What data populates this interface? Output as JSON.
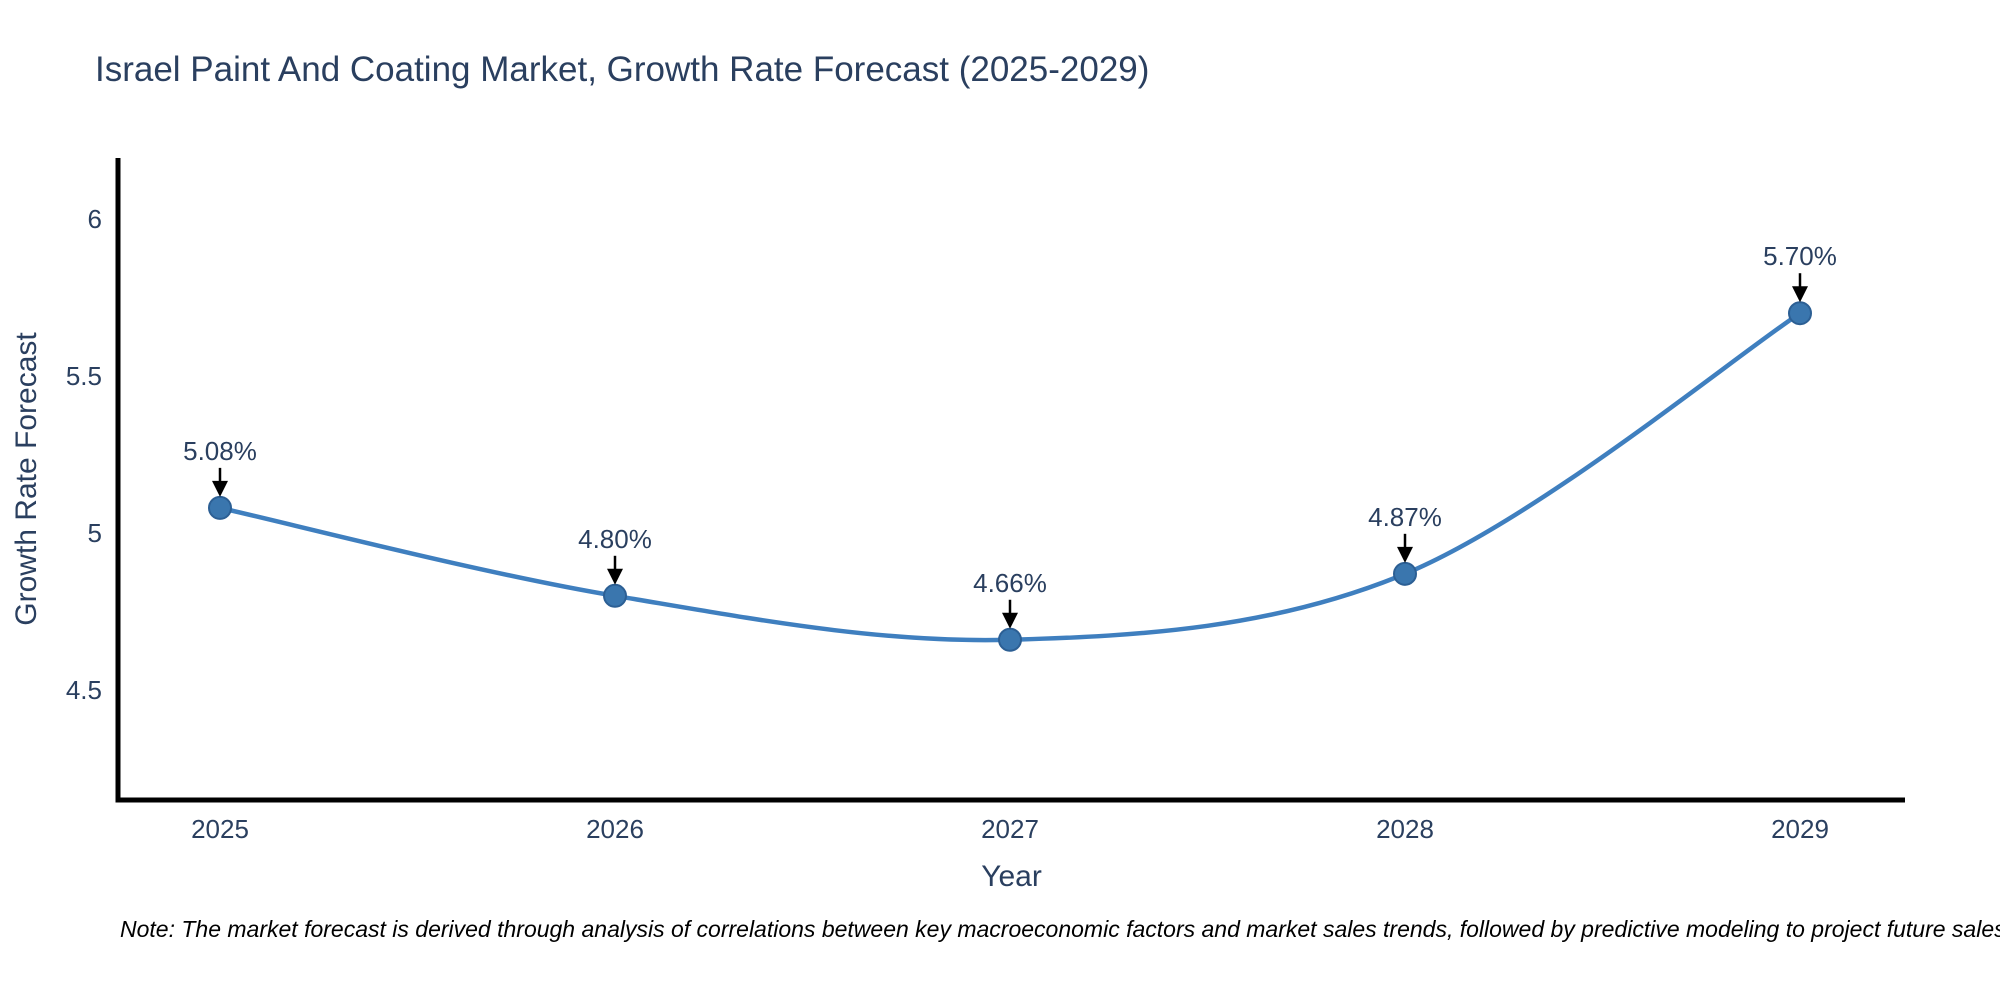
{
  "title": "Israel Paint And Coating Market, Growth Rate Forecast (2025-2029)",
  "note": "Note: The market forecast is derived through analysis of correlations between key macroeconomic factors and market sales trends, followed by predictive modeling to project future sales",
  "colors": {
    "text": "#2a3f5f",
    "line": "#3f7fbf",
    "marker_fill": "#3a76ae",
    "marker_edge": "#2c5f94",
    "axis": "#000000",
    "arrow": "#000000",
    "note_text": "#000000",
    "background": "#ffffff"
  },
  "chart_data": {
    "type": "line",
    "line_shape": "spline",
    "title": "Israel Paint And Coating Market, Growth Rate Forecast (2025-2029)",
    "xlabel": "Year",
    "ylabel": "Growth Rate Forecast",
    "x": [
      2025,
      2026,
      2027,
      2028,
      2029
    ],
    "x_tick_labels": [
      "2025",
      "2026",
      "2027",
      "2028",
      "2029"
    ],
    "values": [
      5.08,
      4.8,
      4.66,
      4.87,
      5.7
    ],
    "point_labels": [
      "5.08%",
      "4.80%",
      "4.66%",
      "4.87%",
      "5.70%"
    ],
    "y_ticks": [
      4.5,
      5,
      5.5,
      6
    ],
    "y_tick_labels": [
      "4.5",
      "5",
      "5.5",
      "6"
    ],
    "ylim": [
      4.15,
      6.19
    ],
    "grid": false,
    "legend": "none",
    "annotations_style": "value label with black arrow pointing down to marker"
  }
}
